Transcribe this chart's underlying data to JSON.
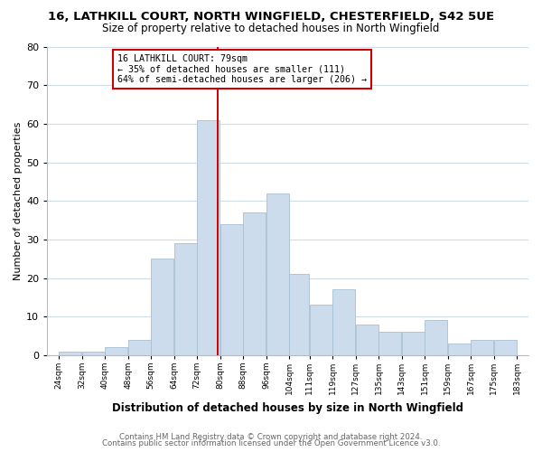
{
  "title": "16, LATHKILL COURT, NORTH WINGFIELD, CHESTERFIELD, S42 5UE",
  "subtitle": "Size of property relative to detached houses in North Wingfield",
  "xlabel": "Distribution of detached houses by size in North Wingfield",
  "ylabel": "Number of detached properties",
  "bar_color": "#ccdcec",
  "bar_edge_color": "#a8c0d4",
  "bins": [
    24,
    32,
    40,
    48,
    56,
    64,
    72,
    80,
    88,
    96,
    104,
    111,
    119,
    127,
    135,
    143,
    151,
    159,
    167,
    175,
    183
  ],
  "counts": [
    1,
    1,
    2,
    4,
    25,
    29,
    61,
    34,
    37,
    42,
    21,
    13,
    17,
    8,
    6,
    6,
    9,
    3,
    4,
    4
  ],
  "tick_labels": [
    "24sqm",
    "32sqm",
    "40sqm",
    "48sqm",
    "56sqm",
    "64sqm",
    "72sqm",
    "80sqm",
    "88sqm",
    "96sqm",
    "104sqm",
    "111sqm",
    "119sqm",
    "127sqm",
    "135sqm",
    "143sqm",
    "151sqm",
    "159sqm",
    "167sqm",
    "175sqm",
    "183sqm"
  ],
  "vline_x": 79,
  "vline_color": "#cc0000",
  "annotation_line1": "16 LATHKILL COURT: 79sqm",
  "annotation_line2": "← 35% of detached houses are smaller (111)",
  "annotation_line3": "64% of semi-detached houses are larger (206) →",
  "annotation_box_color": "#ffffff",
  "annotation_box_edge": "#cc0000",
  "footer1": "Contains HM Land Registry data © Crown copyright and database right 2024.",
  "footer2": "Contains public sector information licensed under the Open Government Licence v3.0.",
  "ylim": [
    0,
    80
  ],
  "bg_color": "#ffffff",
  "plot_bg_color": "#ffffff",
  "grid_color": "#d0dce8"
}
